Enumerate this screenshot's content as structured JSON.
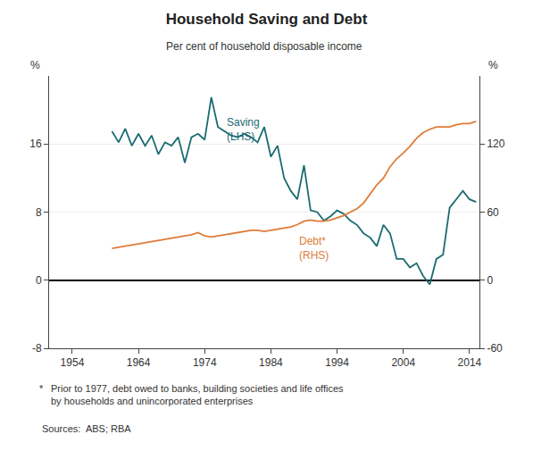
{
  "chart_data": {
    "type": "line",
    "title": "Household Saving and Debt",
    "subtitle": "Per cent of household disposable income",
    "ylabel": "%",
    "y2label": "%",
    "footnote_marker": "*",
    "footnote": "Prior to 1977, debt owed to banks, building societies and life offices\nby households and unincorporated enterprises",
    "source": "Sources:  ABS; RBA",
    "x": [
      1960,
      1961,
      1962,
      1963,
      1964,
      1965,
      1966,
      1967,
      1968,
      1969,
      1970,
      1971,
      1972,
      1973,
      1974,
      1975,
      1976,
      1977,
      1978,
      1979,
      1980,
      1981,
      1982,
      1983,
      1984,
      1985,
      1986,
      1987,
      1988,
      1989,
      1990,
      1991,
      1992,
      1993,
      1994,
      1995,
      1996,
      1997,
      1998,
      1999,
      2000,
      2001,
      2002,
      2003,
      2004,
      2005,
      2006,
      2007,
      2008,
      2009,
      2010,
      2011,
      2012,
      2013,
      2014,
      2015
    ],
    "series": [
      {
        "color": "#1a6b72",
        "axis": "y",
        "values": [
          17.5,
          16.2,
          17.8,
          15.8,
          17.2,
          15.8,
          17.0,
          14.8,
          16.2,
          15.8,
          16.8,
          13.8,
          16.8,
          17.2,
          16.5,
          21.5,
          18.0,
          17.5,
          17.0,
          16.8,
          17.2,
          16.8,
          16.2,
          18.0,
          14.5,
          15.8,
          12.0,
          10.5,
          9.5,
          13.5,
          8.2,
          8.0,
          7.0,
          7.5,
          8.2,
          7.8,
          7.0,
          6.5,
          5.5,
          5.0,
          4.0,
          6.5,
          5.5,
          2.5,
          2.5,
          1.5,
          2.0,
          0.5,
          -0.5,
          2.5,
          3.0,
          8.5,
          9.5,
          10.5,
          9.5,
          9.2
        ]
      },
      {
        "color": "#e07b39",
        "axis": "y2",
        "values": [
          28,
          29,
          30,
          31,
          32,
          33,
          34,
          35,
          36,
          37,
          38,
          39,
          40,
          42,
          39,
          38,
          39,
          40,
          41,
          42,
          43,
          44,
          44,
          43,
          44,
          45,
          46,
          47,
          49,
          52,
          53,
          52,
          52,
          53,
          55,
          57,
          60,
          63,
          68,
          76,
          84,
          90,
          100,
          107,
          112,
          118,
          125,
          130,
          133,
          135,
          135,
          135,
          137,
          138,
          138,
          140
        ]
      }
    ],
    "annotations": [
      {
        "text": "Saving\n(LHS)",
        "x": 1977,
        "y": 19.5,
        "color": "#1a6b72"
      },
      {
        "text": "Debt*\n(RHS)",
        "x": 1988,
        "y": 5.5,
        "color": "#e07b39"
      }
    ],
    "xlim": [
      1950.5,
      2015.5
    ],
    "xticks": [
      1954,
      1964,
      1974,
      1984,
      1994,
      2004,
      2014
    ],
    "ylim": [
      -8,
      24
    ],
    "yticks": [
      -8,
      0,
      8,
      16
    ],
    "y2lim": [
      -60,
      180
    ],
    "y2ticks": [
      -60,
      0,
      60,
      120
    ],
    "grid": true
  }
}
